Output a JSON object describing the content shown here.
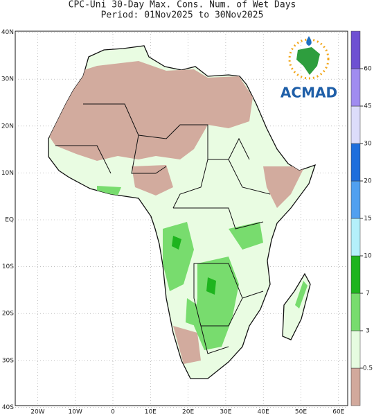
{
  "header": {
    "title": "CPC-Uni 30-Day Max. Cons. Num. of Wet Days",
    "subtitle": "Period: 01Nov2025 to 30Nov2025"
  },
  "map": {
    "logo": "ACMAD",
    "lon_ticks": [
      {
        "value": -20,
        "label": "20W"
      },
      {
        "value": -10,
        "label": "10W"
      },
      0,
      {
        "value": 10,
        "label": "10E"
      },
      {
        "value": 20,
        "label": "20E"
      },
      {
        "value": 30,
        "label": "30E"
      },
      {
        "value": 40,
        "label": "40E"
      },
      {
        "value": 50,
        "label": "50E"
      },
      {
        "value": 60,
        "label": "60E"
      }
    ],
    "lat_ticks": [
      {
        "value": 40,
        "label": "40N"
      },
      {
        "value": 30,
        "label": "30N"
      },
      {
        "value": 20,
        "label": "20N"
      },
      {
        "value": 10,
        "label": "10N"
      },
      {
        "value": 0,
        "label": "EQ"
      },
      {
        "value": -10,
        "label": "10S"
      },
      {
        "value": -20,
        "label": "20S"
      },
      {
        "value": -30,
        "label": "30S"
      },
      {
        "value": -40,
        "label": "40S"
      }
    ]
  },
  "colorbar": {
    "levels": [
      0.5,
      3,
      7,
      10,
      15,
      20,
      30,
      45,
      60
    ],
    "colors": [
      "#d2a99c",
      "#e6fce0",
      "#78dc6e",
      "#1eb41e",
      "#b4f0fa",
      "#50a0f0",
      "#1e6edc",
      "#dcdcfa",
      "#a08cf0",
      "#6e50d2"
    ]
  }
}
